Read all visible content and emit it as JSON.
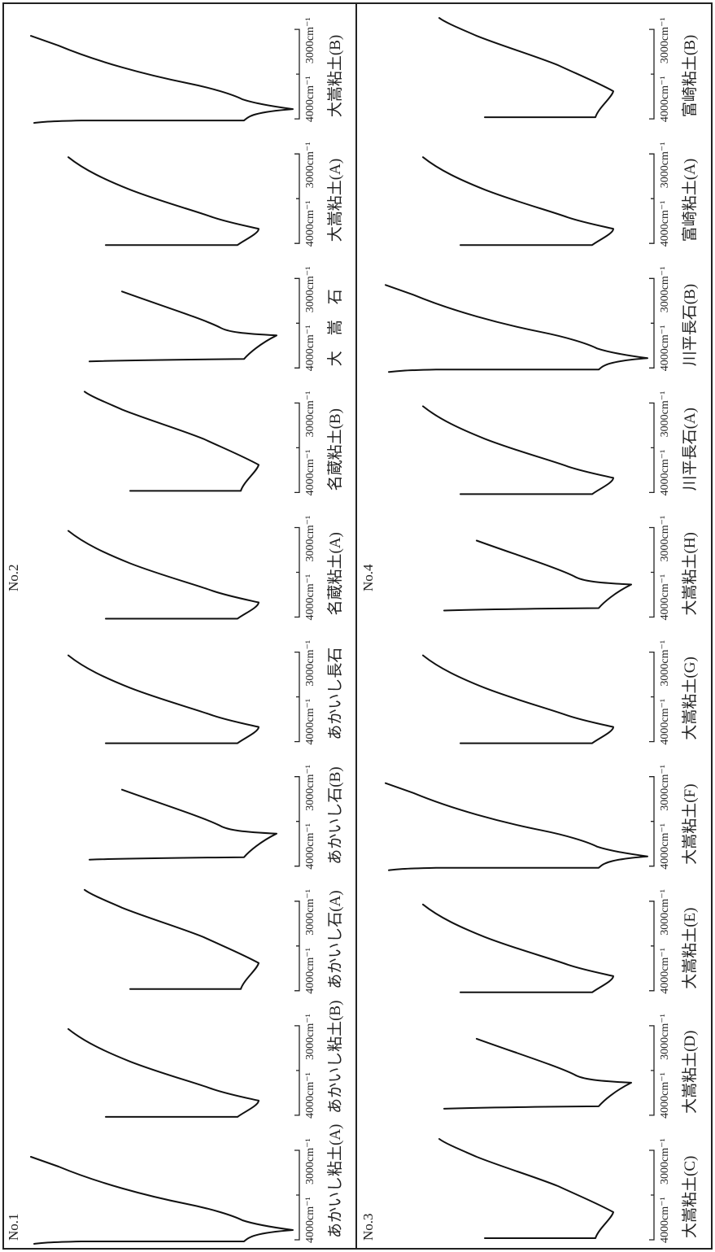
{
  "groups": [
    {
      "label": "No.1",
      "spectra": [
        {
          "sample": "あかいし粘土(A)",
          "scale_low": "4000cm⁻¹",
          "scale_high": "3000cm⁻¹"
        },
        {
          "sample": "あかいし粘土(B)",
          "scale_low": "4000cm⁻¹",
          "scale_high": "3000cm⁻¹"
        },
        {
          "sample": "あかいし石(A)",
          "scale_low": "4000cm⁻¹",
          "scale_high": "3000cm⁻¹"
        },
        {
          "sample": "あかいし石(B)",
          "scale_low": "4000cm⁻¹",
          "scale_high": "3000cm⁻¹"
        },
        {
          "sample": "あかいし長石",
          "scale_low": "4000cm⁻¹",
          "scale_high": "3000cm⁻¹"
        }
      ]
    },
    {
      "label": "No.2",
      "spectra": [
        {
          "sample": "名蔵粘土(A)",
          "scale_low": "4000cm⁻¹",
          "scale_high": "3000cm⁻¹"
        },
        {
          "sample": "名蔵粘土(B)",
          "scale_low": "4000cm⁻¹",
          "scale_high": "3000cm⁻¹"
        },
        {
          "sample": "大　嵩　石",
          "scale_low": "4000cm⁻¹",
          "scale_high": "3000cm⁻¹"
        },
        {
          "sample": "大嵩粘土(A)",
          "scale_low": "4000cm⁻¹",
          "scale_high": "3000cm⁻¹"
        },
        {
          "sample": "大嵩粘土(B)",
          "scale_low": "4000cm⁻¹",
          "scale_high": "3000cm⁻¹"
        }
      ]
    },
    {
      "label": "No.3",
      "spectra": [
        {
          "sample": "大嵩粘土(C)",
          "scale_low": "4000cm⁻¹",
          "scale_high": "3000cm⁻¹"
        },
        {
          "sample": "大嵩粘土(D)",
          "scale_low": "4000cm⁻¹",
          "scale_high": "3000cm⁻¹"
        },
        {
          "sample": "大嵩粘土(E)",
          "scale_low": "4000cm⁻¹",
          "scale_high": "3000cm⁻¹"
        },
        {
          "sample": "大嵩粘土(F)",
          "scale_low": "4000cm⁻¹",
          "scale_high": "3000cm⁻¹"
        },
        {
          "sample": "大嵩粘土(G)",
          "scale_low": "4000cm⁻¹",
          "scale_high": "3000cm⁻¹"
        }
      ]
    },
    {
      "label": "No.4",
      "spectra": [
        {
          "sample": "大嵩粘土(H)",
          "scale_low": "4000cm⁻¹",
          "scale_high": "3000cm⁻¹"
        },
        {
          "sample": "川平長石(A)",
          "scale_low": "4000cm⁻¹",
          "scale_high": "3000cm⁻¹"
        },
        {
          "sample": "川平長石(B)",
          "scale_low": "4000cm⁻¹",
          "scale_high": "3000cm⁻¹"
        },
        {
          "sample": "富崎粘土(A)",
          "scale_low": "4000cm⁻¹",
          "scale_high": "3000cm⁻¹"
        },
        {
          "sample": "富崎粘土(B)",
          "scale_low": "4000cm⁻¹",
          "scale_high": "3000cm⁻¹"
        }
      ]
    }
  ]
}
